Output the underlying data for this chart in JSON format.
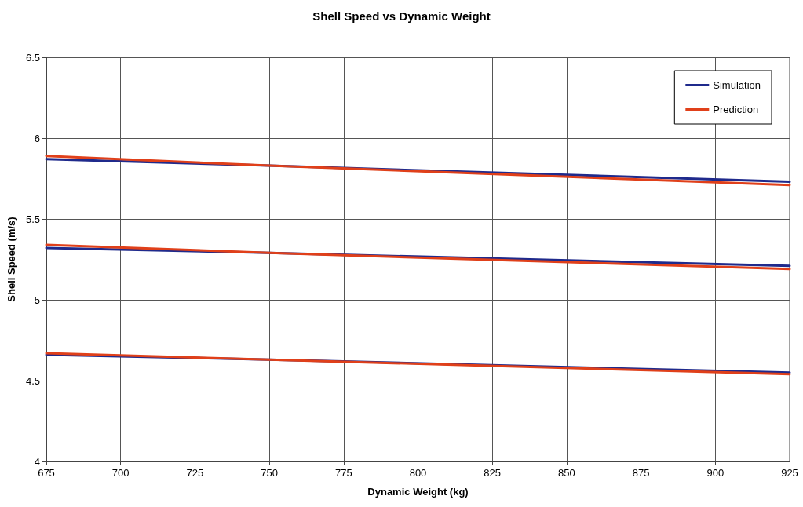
{
  "chart_data": {
    "type": "line",
    "title": "Shell Speed vs Dynamic Weight",
    "xlabel": "Dynamic Weight (kg)",
    "ylabel": "Shell Speed (m/s)",
    "x": [
      675,
      750,
      925
    ],
    "series": [
      {
        "name": "Simulation",
        "color": "#1f2a8c",
        "values": [
          5.87,
          5.83,
          5.73
        ]
      },
      {
        "name": "Prediction",
        "color": "#e0401a",
        "values": [
          5.89,
          5.83,
          5.71
        ]
      },
      {
        "color": "#1f2a8c",
        "values": [
          5.32,
          5.29,
          5.21
        ]
      },
      {
        "color": "#e0401a",
        "values": [
          5.34,
          5.29,
          5.19
        ]
      },
      {
        "color": "#1f2a8c",
        "values": [
          4.66,
          4.63,
          4.55
        ]
      },
      {
        "color": "#e0401a",
        "values": [
          4.67,
          4.63,
          4.54
        ]
      }
    ],
    "xlim": [
      675,
      925
    ],
    "xticks": [
      675,
      700,
      725,
      750,
      775,
      800,
      825,
      850,
      875,
      900,
      925
    ],
    "ylim": [
      4,
      6.5
    ],
    "yticks": [
      4,
      4.5,
      5,
      5.5,
      6,
      6.5
    ],
    "grid": true,
    "legend": "top right",
    "marker": "none",
    "line_style": "solid"
  }
}
